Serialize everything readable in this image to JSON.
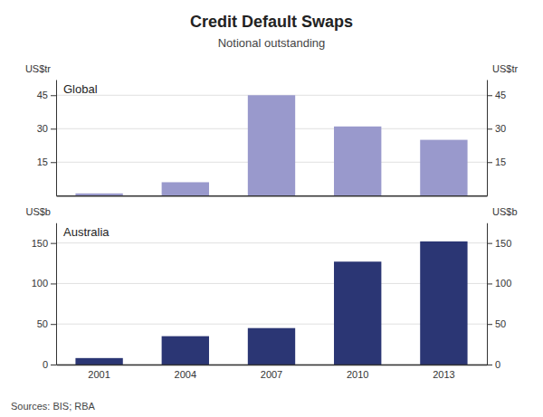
{
  "chart_data": [
    {
      "type": "bar",
      "title": "Credit Default Swaps",
      "subtitle": "Notional outstanding",
      "categories": [
        "2001",
        "2004",
        "2007",
        "2010",
        "2013"
      ],
      "series": [
        {
          "name": "Global",
          "color": "#9999cc",
          "values": [
            1.0,
            6.0,
            45.0,
            31.0,
            25.0
          ]
        }
      ],
      "ylabel": "US$tr",
      "y2label": "US$tr",
      "ylim": [
        0,
        52
      ],
      "yticks": [
        15,
        30,
        45
      ],
      "y2lim": [
        0,
        52
      ],
      "y2ticks": [
        15,
        30,
        45
      ],
      "grid": true,
      "tick_labels": "y"
    },
    {
      "type": "bar",
      "annotations": [
        "Sources: BIS; RBA"
      ],
      "categories": [
        "2001",
        "2004",
        "2007",
        "2010",
        "2013"
      ],
      "series": [
        {
          "name": "Australia",
          "color": "#2b3674",
          "values": [
            8.0,
            35.0,
            45.0,
            127.0,
            152.0
          ]
        }
      ],
      "ylabel": "US$b",
      "y2label": "US$b",
      "ylim": [
        0,
        175
      ],
      "yticks": [
        0,
        50,
        100,
        150
      ],
      "y2lim": [
        0,
        175
      ],
      "y2ticks": [
        0,
        50,
        100,
        150
      ],
      "grid": true
    }
  ]
}
